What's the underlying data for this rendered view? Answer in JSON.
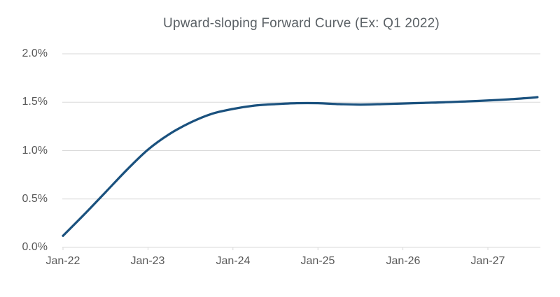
{
  "chart_data": {
    "type": "line",
    "title": "Upward-sloping Forward Curve (Ex: Q1 2022)",
    "xlabel": "",
    "ylabel": "",
    "x_tick_labels": [
      "Jan-22",
      "Jan-23",
      "Jan-24",
      "Jan-25",
      "Jan-26",
      "Jan-27"
    ],
    "y_tick_labels": [
      "2.0%",
      "1.5%",
      "1.0%",
      "0.5%",
      "0.0%"
    ],
    "ylim_pct": [
      0.0,
      2.0
    ],
    "y_unit": "%",
    "grid": "horizontal",
    "legend": "none",
    "colors": {
      "grid": "#D9D9D9",
      "axis": "#D9D9D9",
      "text": "#595959",
      "background": "#FFFFFF"
    },
    "series": [
      {
        "name": "Forward curve (Q1 2022)",
        "color": "#1A517E",
        "x_months_from_jan22": [
          0,
          3,
          6,
          9,
          12,
          15,
          18,
          21,
          24,
          27,
          30,
          33,
          36,
          39,
          42,
          45,
          48,
          51,
          54,
          57,
          60,
          63,
          66,
          67
        ],
        "x_point_labels": [
          "Jan-22",
          "Apr-22",
          "Jul-22",
          "Oct-22",
          "Jan-23",
          "Apr-23",
          "Jul-23",
          "Oct-23",
          "Jan-24",
          "Apr-24",
          "Jul-24",
          "Oct-24",
          "Jan-25",
          "Apr-25",
          "Jul-25",
          "Oct-25",
          "Jan-26",
          "Apr-26",
          "Jul-26",
          "Oct-26",
          "Jan-27",
          "Apr-27",
          "Jul-27",
          "Aug-27"
        ],
        "values_pct": [
          0.12,
          0.34,
          0.57,
          0.8,
          1.01,
          1.17,
          1.29,
          1.38,
          1.43,
          1.465,
          1.48,
          1.49,
          1.49,
          1.48,
          1.475,
          1.48,
          1.487,
          1.493,
          1.5,
          1.508,
          1.518,
          1.53,
          1.545,
          1.552
        ]
      }
    ]
  }
}
